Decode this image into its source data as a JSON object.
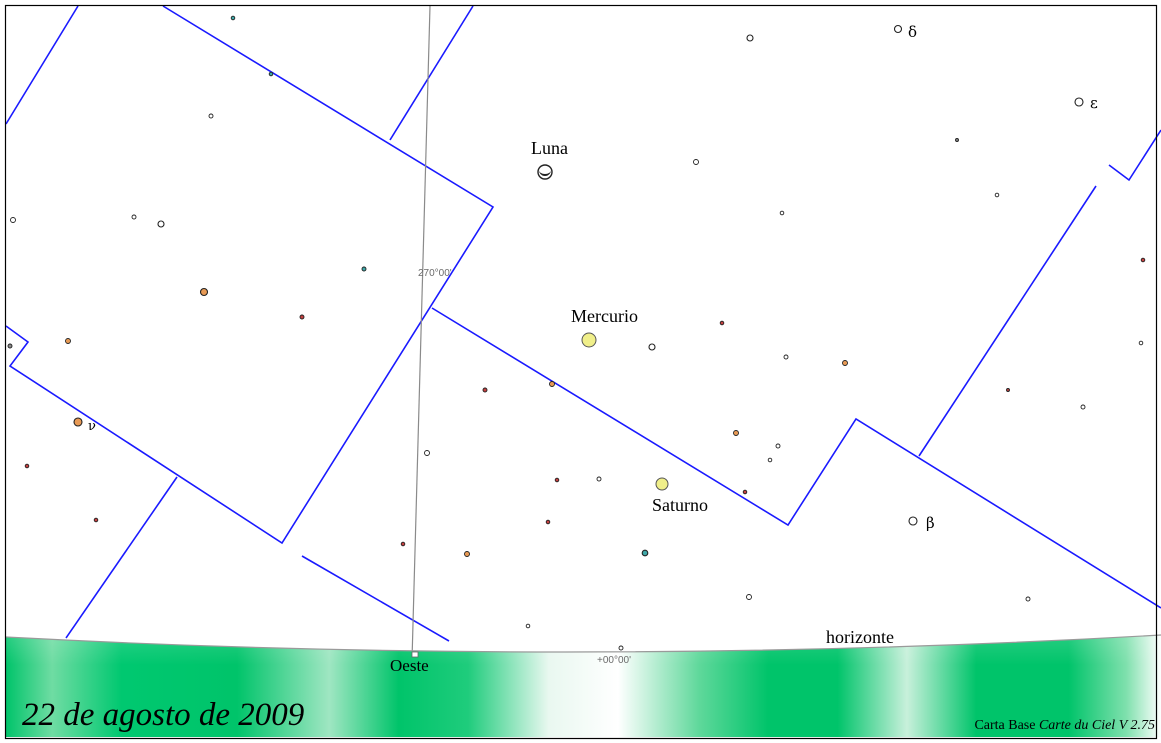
{
  "date_label": "22 de agosto de 2009",
  "credit": {
    "prefix": "Carta Base ",
    "software": "Carte du Ciel V 2.75"
  },
  "horizon_label": "horizonte",
  "direction_label": "Oeste",
  "grid_labels": {
    "azimuth": "270°00'",
    "altitude": "+00°00'"
  },
  "planets": [
    {
      "id": "moon",
      "label": "Luna"
    },
    {
      "id": "mercury",
      "label": "Mercurio"
    },
    {
      "id": "saturn",
      "label": "Saturno"
    }
  ],
  "star_labels": {
    "delta": "δ",
    "epsilon": "ε",
    "beta": "β",
    "nu": "ν"
  },
  "colors": {
    "constellation_boundary": "#1a1aff",
    "grid_line": "#8a8a8a",
    "ground": "#00c46a",
    "ground_light": "#dff5ea",
    "planet": "#f0ef8a",
    "star_outline": "#222222",
    "star_orange": "#e89a55",
    "star_red": "#c44040",
    "star_teal": "#3fa8a8"
  }
}
